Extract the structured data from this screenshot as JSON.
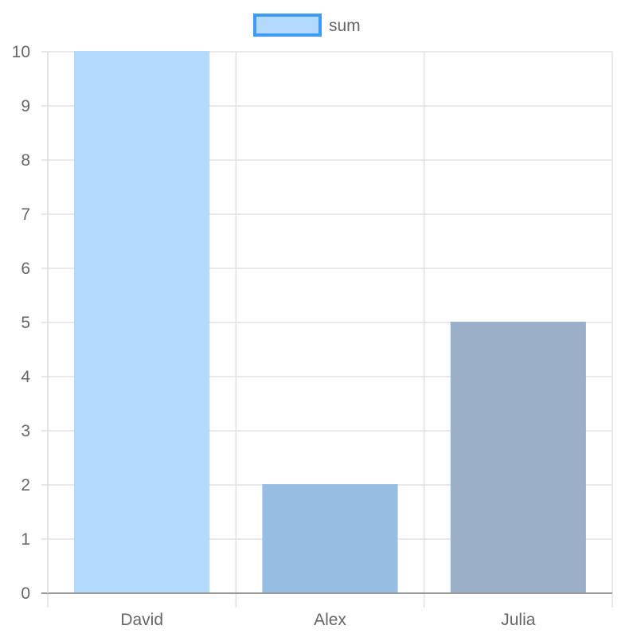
{
  "chart_data": {
    "type": "bar",
    "categories": [
      "David",
      "Alex",
      "Julia"
    ],
    "series": [
      {
        "name": "sum",
        "values": [
          10,
          2,
          5
        ],
        "bar_colors": [
          "#b3d9fd",
          "#98bde3",
          "#9ab0c8"
        ]
      }
    ],
    "title": "",
    "xlabel": "",
    "ylabel": "",
    "ylim": [
      0,
      10
    ],
    "y_ticks": [
      "0",
      "1",
      "2",
      "3",
      "4",
      "5",
      "6",
      "7",
      "8",
      "9",
      "10"
    ],
    "grid": true,
    "legend_position": "top-center"
  },
  "colors": {
    "grid": "#e0e0e0",
    "axis": "#999999",
    "tick_text": "#666666",
    "legend_fill": "#b3d9fd",
    "legend_border": "#3d9bf5"
  }
}
